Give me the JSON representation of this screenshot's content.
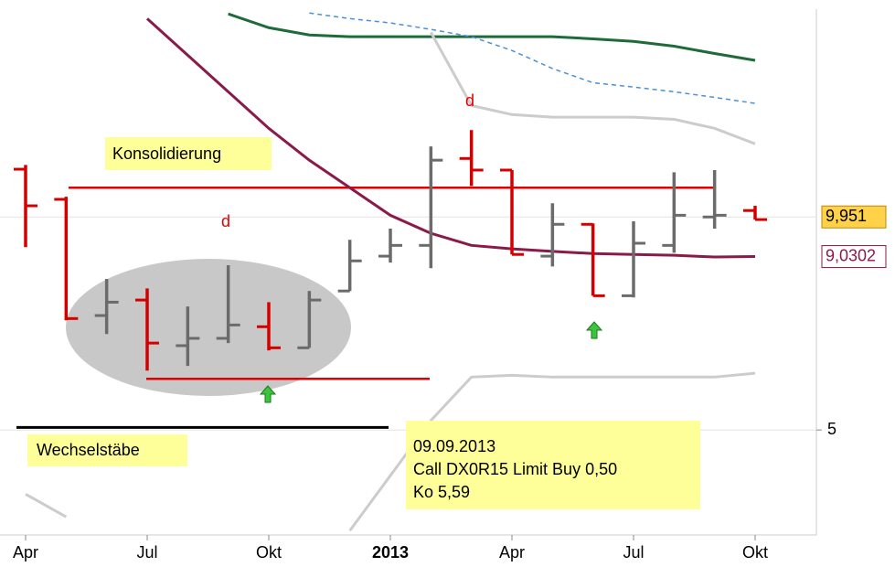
{
  "chart_data": {
    "type": "ohlc",
    "categories": [
      "Apr",
      null,
      null,
      "Jul",
      null,
      null,
      "Okt",
      null,
      null,
      "2013",
      null,
      null,
      "Apr",
      null,
      null,
      "Jul",
      null,
      null,
      "Okt"
    ],
    "open": [
      11.06,
      10.36,
      7.66,
      8.02,
      6.96,
      7.13,
      7.4,
      6.91,
      8.23,
      9.04,
      9.29,
      11.31,
      11.04,
      9.04,
      9.78,
      8.12,
      9.29,
      9.95,
      10.1
    ],
    "high": [
      11.16,
      10.42,
      8.51,
      8.29,
      7.87,
      8.83,
      7.97,
      8.23,
      9.42,
      9.68,
      11.59,
      11.97,
      11.04,
      10.27,
      9.8,
      9.85,
      10.99,
      11.04,
      10.21
    ],
    "low": [
      9.25,
      7.55,
      7.23,
      6.38,
      6.49,
      7.02,
      6.85,
      6.91,
      8.23,
      8.89,
      8.76,
      10.67,
      9.08,
      8.8,
      8.12,
      8.08,
      9.12,
      9.68,
      9.89
    ],
    "close": [
      10.21,
      7.59,
      7.97,
      7.02,
      7.13,
      7.44,
      6.91,
      8.02,
      8.93,
      9.29,
      11.27,
      11.04,
      9.08,
      9.78,
      8.12,
      9.34,
      9.99,
      9.99,
      9.89
    ],
    "up_color": "#6b6b6b",
    "down_color": "#d40000",
    "overlays": [
      {
        "color": "#8b1a4a",
        "dash": false,
        "values": [
          null,
          null,
          null,
          14.56,
          13.71,
          12.86,
          12.01,
          11.27,
          10.63,
          9.99,
          9.57,
          9.29,
          9.21,
          9.15,
          9.1,
          9.08,
          9.06,
          9.02,
          9.0302
        ]
      },
      {
        "color": "#1e6b3a",
        "dash": false,
        "values": [
          null,
          null,
          null,
          null,
          null,
          14.67,
          14.35,
          14.18,
          14.14,
          14.14,
          14.14,
          14.14,
          14.14,
          14.14,
          14.09,
          14.03,
          13.92,
          13.75,
          13.59
        ]
      },
      {
        "color": "#4a90d9",
        "dash": true,
        "values": [
          null,
          null,
          null,
          null,
          null,
          null,
          null,
          14.69,
          14.56,
          14.46,
          14.31,
          14.14,
          13.82,
          13.4,
          13.07,
          12.97,
          12.86,
          12.73,
          12.59
        ]
      },
      {
        "color": "#cccccc",
        "dash": false,
        "values": [
          null,
          null,
          null,
          null,
          null,
          null,
          null,
          null,
          null,
          null,
          14.24,
          12.54,
          12.33,
          12.27,
          12.27,
          12.27,
          12.22,
          12.01,
          11.65
        ]
      },
      {
        "color": "#cccccc",
        "dash": false,
        "values": [
          3.51,
          2.98,
          null,
          null,
          null,
          null,
          null,
          null,
          2.66,
          3.94,
          5.22,
          6.23,
          6.27,
          6.23,
          6.23,
          6.23,
          6.23,
          6.23,
          6.32
        ]
      }
    ],
    "levels": [
      {
        "value": 10.63,
        "color": "#e00000"
      },
      {
        "value": 6.19,
        "color": "#e00000"
      },
      {
        "value": 5.06,
        "color": "#000000"
      }
    ],
    "last_price": {
      "value": 9.951,
      "label": "9,951"
    },
    "last_average": {
      "value": 9.0302,
      "label": "9,0302"
    },
    "ylim": [
      2.56,
      14.78
    ],
    "yticks": [
      5
    ],
    "annotations": [
      "Konsolidierung",
      "d",
      "d",
      "Wechselstäbe"
    ],
    "note": [
      "09.09.2013",
      "Call DX0R15 Limit Buy 0,50",
      "Ko 5,59"
    ]
  }
}
